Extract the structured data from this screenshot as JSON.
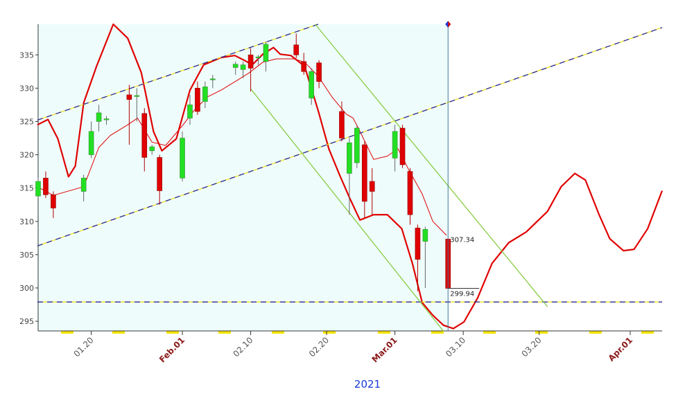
{
  "chart_data": {
    "type": "candlestick",
    "xlabel": "2021",
    "xlim": [
      13.0,
      95.2
    ],
    "ylim": [
      293.55,
      339.6
    ],
    "yticks": [
      295,
      300,
      305,
      310,
      315,
      320,
      325,
      330,
      335
    ],
    "xticks": [
      {
        "value": 20,
        "label": "01.20"
      },
      {
        "value": 41,
        "label": "02.10"
      },
      {
        "value": 51,
        "label": "02.20"
      },
      {
        "value": 69,
        "label": "03.10"
      },
      {
        "value": 79,
        "label": "03.20"
      }
    ],
    "xticks_major": [
      {
        "value": 32,
        "label": "Feb.01"
      },
      {
        "value": 60,
        "label": "Mar.01"
      },
      {
        "value": 91,
        "label": "Apr.01"
      }
    ],
    "up_color": "#22e022",
    "down_color": "#e00000",
    "x": [
      13,
      14,
      15,
      19,
      20,
      21,
      22,
      25,
      26,
      27,
      28,
      29,
      32,
      33,
      34,
      35,
      36,
      39,
      40,
      41,
      42,
      43,
      47,
      48,
      49,
      50,
      53,
      54,
      55,
      56,
      57,
      60,
      61,
      62,
      63,
      64,
      67
    ],
    "open": [
      313.8,
      316.5,
      314,
      314.5,
      320,
      325,
      325.3,
      329,
      328.8,
      326.2,
      320.6,
      319.6,
      316.5,
      325.5,
      330,
      328,
      331.3,
      333.1,
      332.8,
      335,
      334.6,
      334,
      336.5,
      334,
      328.5,
      333.8,
      326.5,
      317.2,
      318.8,
      321.5,
      316,
      319.5,
      324,
      317.5,
      309,
      307,
      307.34
    ],
    "high": [
      316.5,
      317.5,
      314.5,
      317,
      325,
      327.5,
      325.8,
      330.5,
      330,
      327,
      321.5,
      320,
      323.5,
      329,
      331,
      331,
      332,
      334,
      334,
      336,
      335,
      337,
      338.2,
      335.3,
      333,
      334.2,
      328,
      322.5,
      324.5,
      322,
      318,
      324.5,
      324.5,
      318,
      309.5,
      309.2,
      307.5
    ],
    "low": [
      313.5,
      313.5,
      310.5,
      313,
      319.5,
      323.5,
      324.5,
      321.5,
      325,
      317.5,
      320,
      312.5,
      316,
      324.5,
      326,
      327,
      330,
      332,
      331.5,
      329.5,
      333.5,
      332.5,
      334.5,
      332,
      327.5,
      330,
      322,
      311,
      318,
      310.5,
      311,
      317.5,
      318,
      309.5,
      299.5,
      300,
      299.94
    ],
    "close": [
      316,
      314,
      312,
      316.5,
      323.5,
      326.3,
      325.4,
      328.3,
      328.9,
      319.6,
      321.2,
      314.6,
      322.5,
      327.5,
      326.5,
      330.2,
      331.4,
      333.6,
      333.5,
      333,
      334.7,
      336.6,
      335,
      332.5,
      332.5,
      331,
      322.5,
      321.8,
      324,
      313,
      314.5,
      323.5,
      318.5,
      311,
      304.3,
      308.8,
      299.94
    ],
    "last_labels": [
      307.34,
      299.94
    ],
    "lines": [
      {
        "color": "#e00000",
        "width": 2.2,
        "x": [
          12.9,
          14.3,
          15.6,
          17.0,
          17.9,
          19.0,
          20.7,
          22.9,
          24.8,
          26.6,
          28.2,
          29.3,
          31.2,
          33.0,
          34.8,
          37.1,
          38.9,
          40.3,
          41.2,
          42.6,
          44.0,
          44.9,
          46.3,
          48.1,
          49.9,
          51.3,
          52.7,
          54.0,
          55.4,
          57.2,
          59.0,
          60.9,
          62.3,
          63.6,
          65.0,
          66.4,
          67.7,
          69.1,
          70.9,
          72.8,
          75.0,
          77.3,
          80.1,
          81.9,
          83.7,
          85.1,
          86.9,
          88.3,
          90.1,
          91.5,
          93.3,
          95.2
        ],
        "y": [
          324.5,
          325.3,
          322.4,
          316.7,
          318.3,
          327.8,
          333.3,
          339.6,
          337.5,
          332.3,
          323.5,
          320.6,
          322.4,
          329.7,
          333.5,
          334.6,
          334.9,
          334.1,
          333.5,
          335.1,
          336.1,
          335.1,
          334.9,
          333.3,
          326.6,
          320.9,
          317.0,
          313.6,
          310.2,
          311.0,
          311.0,
          308.9,
          303.7,
          297.8,
          295.9,
          294.4,
          293.9,
          294.9,
          298.5,
          303.7,
          306.8,
          308.4,
          311.5,
          315.2,
          317.2,
          316.2,
          311.0,
          307.4,
          305.6,
          305.8,
          308.9,
          314.6
        ]
      },
      {
        "color": "#e00000",
        "width": 1,
        "x": [
          12.9,
          15.0,
          19.0,
          21.0,
          22.5,
          24.8,
          26.1,
          28.0,
          29.8,
          32.1,
          33.5,
          35.3,
          37.1,
          39.4,
          40.8,
          42.6,
          44.4,
          46.7,
          48.1,
          49.9,
          51.7,
          53.6,
          54.5,
          55.4,
          57.2,
          59.0,
          60.4,
          61.8,
          63.6,
          65.0,
          66.8
        ],
        "y": [
          315.2,
          313.9,
          315.2,
          321.1,
          322.9,
          324.5,
          325.5,
          321.9,
          321.4,
          324.5,
          326.6,
          328.7,
          329.7,
          331.3,
          332.3,
          333.9,
          334.4,
          334.4,
          333.9,
          331.8,
          328.7,
          326.1,
          325.5,
          323.5,
          319.3,
          319.8,
          320.9,
          317.8,
          314.1,
          310.0,
          307.9
        ]
      },
      {
        "color": "#2a2a9a",
        "dash": true,
        "x": [
          12.9,
          49.9
        ],
        "y": [
          325.2,
          339.6
        ]
      },
      {
        "color": "#2a2a9a",
        "dash": true,
        "x": [
          12.9,
          95.2
        ],
        "y": [
          306.3,
          339.1
        ]
      },
      {
        "color": "#2a2a9a",
        "dash": true,
        "x": [
          12.9,
          95.2
        ],
        "y": [
          297.9,
          297.9
        ]
      },
      {
        "color": "#88cc44",
        "width": 1.3,
        "x": [
          41.0,
          66.4
        ],
        "y": [
          329.9,
          293.5
        ]
      },
      {
        "color": "#88cc44",
        "width": 1.3,
        "x": [
          49.5,
          80.1
        ],
        "y": [
          339.6,
          297.2
        ]
      }
    ]
  }
}
